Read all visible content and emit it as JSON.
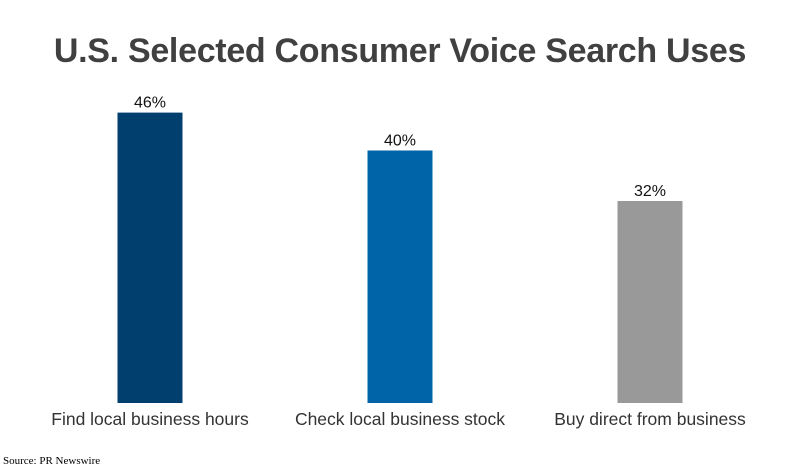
{
  "chart_data": {
    "type": "bar",
    "title": "U.S. Selected Consumer Voice Search Uses",
    "categories": [
      "Find local business hours",
      "Check local business stock",
      "Buy direct from business"
    ],
    "values": [
      46,
      40,
      32
    ],
    "value_labels": [
      "46%",
      "40%",
      "32%"
    ],
    "colors": [
      "#003f6e",
      "#0064a8",
      "#999999"
    ],
    "xlabel": "",
    "ylabel": "",
    "ylim": [
      0,
      50
    ],
    "grid": false,
    "legend": "none"
  },
  "source": "Source: PR Newswire"
}
